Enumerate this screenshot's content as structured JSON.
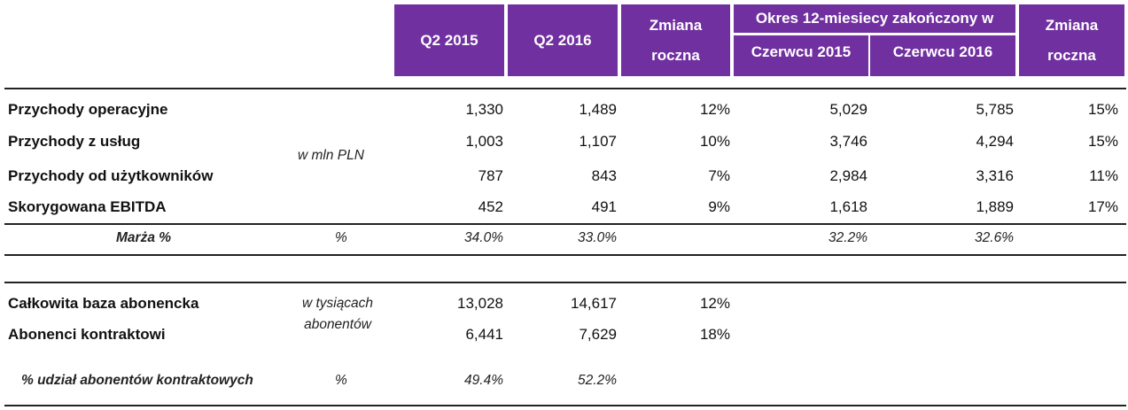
{
  "header": {
    "q2_2015": "Q2 2015",
    "q2_2016": "Q2 2016",
    "yoy_change_line1": "Zmiana",
    "yoy_change_line2": "roczna",
    "period_12m": "Okres 12-miesiecy zakończony w",
    "june_2015": "Czerwcu 2015",
    "june_2016": "Czerwcu 2016",
    "yoy_change2_line1": "Zmiana",
    "yoy_change2_line2": "roczna"
  },
  "financials": {
    "unit": "w mln PLN",
    "rows": [
      {
        "label": "Przychody operacyjne",
        "q2_2015": "1,330",
        "q2_2016": "1,489",
        "yoy": "12%",
        "june_2015": "5,029",
        "june_2016": "5,785",
        "yoy_12m": "15%"
      },
      {
        "label": "Przychody z usług",
        "q2_2015": "1,003",
        "q2_2016": "1,107",
        "yoy": "10%",
        "june_2015": "3,746",
        "june_2016": "4,294",
        "yoy_12m": "15%"
      },
      {
        "label": "Przychody od użytkowników",
        "q2_2015": "787",
        "q2_2016": "843",
        "yoy": "7%",
        "june_2015": "2,984",
        "june_2016": "3,316",
        "yoy_12m": "11%"
      },
      {
        "label": "Skorygowana EBITDA",
        "q2_2015": "452",
        "q2_2016": "491",
        "yoy": "9%",
        "june_2015": "1,618",
        "june_2016": "1,889",
        "yoy_12m": "17%"
      }
    ],
    "margin": {
      "label": "Marża %",
      "unit": "%",
      "q2_2015": "34.0%",
      "q2_2016": "33.0%",
      "june_2015": "32.2%",
      "june_2016": "32.6%"
    }
  },
  "subscribers": {
    "unit_line1": "w tysiącach",
    "unit_line2": "abonentów",
    "rows": [
      {
        "label": "Całkowita baza abonencka",
        "q2_2015": "13,028",
        "q2_2016": "14,617",
        "yoy": "12%"
      },
      {
        "label": "Abonenci kontraktowi",
        "q2_2015": "6,441",
        "q2_2016": "7,629",
        "yoy": "18%"
      }
    ],
    "share": {
      "label": "% udział abonentów kontraktowych",
      "unit": "%",
      "q2_2015": "49.4%",
      "q2_2016": "52.2%"
    }
  },
  "colors": {
    "header_bg": "#7030a0",
    "header_text": "#ffffff"
  }
}
